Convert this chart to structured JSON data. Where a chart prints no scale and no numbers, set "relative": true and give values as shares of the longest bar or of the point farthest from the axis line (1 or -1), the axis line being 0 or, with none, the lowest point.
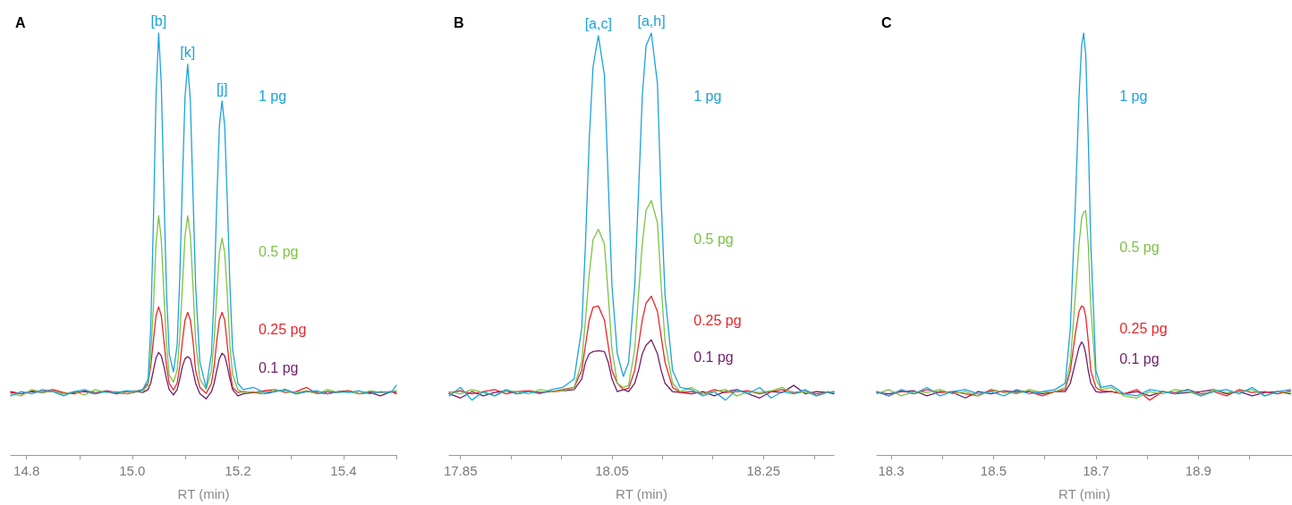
{
  "chart_data": [
    {
      "type": "line",
      "title": "A",
      "xlabel": "RT (min)",
      "relative": true,
      "xlim": [
        14.77,
        15.5
      ],
      "xticks": [
        14.8,
        {
          "value": 14.9,
          "label": null
        },
        {
          "value": 15,
          "label": "15.0"
        },
        {
          "value": 15.1,
          "label": null
        },
        15.2,
        {
          "value": 15.3,
          "label": null
        },
        15.4,
        {
          "value": 15.5,
          "label": null
        }
      ],
      "x": [
        14.77,
        14.79,
        14.81,
        14.83,
        14.85,
        14.87,
        14.89,
        14.91,
        14.93,
        14.95,
        14.97,
        14.99,
        15.01,
        15.02,
        15.03,
        15.035,
        15.04,
        15.045,
        15.05,
        15.055,
        15.06,
        15.065,
        15.07,
        15.078,
        15.085,
        15.09,
        15.095,
        15.1,
        15.105,
        15.11,
        15.115,
        15.12,
        15.128,
        15.14,
        15.15,
        15.155,
        15.16,
        15.165,
        15.17,
        15.175,
        15.18,
        15.185,
        15.19,
        15.2,
        15.21,
        15.23,
        15.25,
        15.27,
        15.29,
        15.31,
        15.33,
        15.35,
        15.37,
        15.39,
        15.41,
        15.43,
        15.45,
        15.47,
        15.49,
        15.5
      ],
      "series": [
        {
          "name": "1 pg",
          "color": "#1ba3dd",
          "values": [
            0.14,
            0.15,
            0.145,
            0.155,
            0.15,
            0.14,
            0.15,
            0.155,
            0.145,
            0.15,
            0.148,
            0.152,
            0.15,
            0.155,
            0.18,
            0.3,
            0.55,
            0.85,
            1.0,
            0.88,
            0.62,
            0.38,
            0.24,
            0.197,
            0.26,
            0.42,
            0.65,
            0.85,
            0.926,
            0.84,
            0.62,
            0.4,
            0.22,
            0.159,
            0.24,
            0.38,
            0.6,
            0.78,
            0.839,
            0.78,
            0.6,
            0.4,
            0.25,
            0.17,
            0.155,
            0.16,
            0.148,
            0.15,
            0.155,
            0.145,
            0.15,
            0.152,
            0.145,
            0.15,
            0.148,
            0.152,
            0.145,
            0.15,
            0.148,
            0.165
          ]
        },
        {
          "name": "0.5 pg",
          "color": "#7dc242",
          "values": [
            0.145,
            0.14,
            0.155,
            0.148,
            0.152,
            0.145,
            0.15,
            0.142,
            0.155,
            0.148,
            0.15,
            0.145,
            0.152,
            0.15,
            0.165,
            0.23,
            0.35,
            0.5,
            0.567,
            0.51,
            0.38,
            0.26,
            0.19,
            0.173,
            0.2,
            0.28,
            0.4,
            0.52,
            0.567,
            0.52,
            0.4,
            0.27,
            0.18,
            0.156,
            0.2,
            0.27,
            0.38,
            0.48,
            0.514,
            0.48,
            0.38,
            0.26,
            0.19,
            0.155,
            0.148,
            0.15,
            0.145,
            0.155,
            0.15,
            0.148,
            0.152,
            0.145,
            0.155,
            0.148,
            0.15,
            0.145,
            0.152,
            0.148,
            0.15,
            0.152
          ]
        },
        {
          "name": "0.25 pg",
          "color": "#e8262b",
          "values": [
            0.148,
            0.145,
            0.152,
            0.15,
            0.155,
            0.148,
            0.145,
            0.152,
            0.148,
            0.15,
            0.145,
            0.15,
            0.152,
            0.155,
            0.17,
            0.21,
            0.27,
            0.33,
            0.351,
            0.33,
            0.27,
            0.21,
            0.17,
            0.154,
            0.17,
            0.21,
            0.27,
            0.32,
            0.338,
            0.32,
            0.27,
            0.2,
            0.16,
            0.146,
            0.17,
            0.21,
            0.27,
            0.32,
            0.338,
            0.32,
            0.26,
            0.2,
            0.16,
            0.148,
            0.15,
            0.148,
            0.152,
            0.155,
            0.148,
            0.15,
            0.16,
            0.145,
            0.15,
            0.148,
            0.152,
            0.145,
            0.15,
            0.148,
            0.15,
            0.145
          ]
        },
        {
          "name": "0.1 pg",
          "color": "#6e1f68",
          "values": [
            0.15,
            0.145,
            0.15,
            0.148,
            0.152,
            0.145,
            0.148,
            0.15,
            0.145,
            0.152,
            0.148,
            0.145,
            0.15,
            0.148,
            0.155,
            0.17,
            0.2,
            0.23,
            0.243,
            0.235,
            0.21,
            0.18,
            0.155,
            0.142,
            0.155,
            0.18,
            0.21,
            0.228,
            0.233,
            0.228,
            0.2,
            0.17,
            0.145,
            0.133,
            0.15,
            0.17,
            0.2,
            0.228,
            0.241,
            0.235,
            0.21,
            0.18,
            0.155,
            0.14,
            0.145,
            0.148,
            0.145,
            0.15,
            0.155,
            0.145,
            0.15,
            0.148,
            0.145,
            0.15,
            0.152,
            0.145,
            0.148,
            0.14,
            0.15,
            0.148
          ]
        }
      ],
      "annotations": [
        {
          "text": "[b]",
          "x": 15.05,
          "y": 1.0
        },
        {
          "text": "[k]",
          "x": 15.105,
          "y": 0.926
        },
        {
          "text": "[j]",
          "x": 15.17,
          "y": 0.839
        }
      ]
    },
    {
      "type": "line",
      "title": "B",
      "xlabel": "RT (min)",
      "relative": true,
      "xlim": [
        17.835,
        18.343
      ],
      "xticks": [
        17.85,
        {
          "value": 17.917,
          "label": null
        },
        {
          "value": 17.983,
          "label": null
        },
        18.05,
        {
          "value": 18.117,
          "label": null
        },
        {
          "value": 18.183,
          "label": null
        },
        18.25,
        {
          "value": 18.317,
          "label": null
        }
      ],
      "x": [
        17.835,
        17.85,
        17.865,
        17.88,
        17.895,
        17.91,
        17.925,
        17.94,
        17.955,
        17.97,
        17.985,
        18.0,
        18.01,
        18.015,
        18.02,
        18.025,
        18.032,
        18.04,
        18.045,
        18.05,
        18.057,
        18.065,
        18.072,
        18.08,
        18.085,
        18.09,
        18.095,
        18.102,
        18.11,
        18.115,
        18.12,
        18.13,
        18.14,
        18.155,
        18.17,
        18.185,
        18.2,
        18.215,
        18.23,
        18.245,
        18.26,
        18.275,
        18.29,
        18.305,
        18.32,
        18.335,
        18.343
      ],
      "series": [
        {
          "name": "1 pg",
          "color": "#1ba3dd",
          "values": [
            0.14,
            0.16,
            0.13,
            0.15,
            0.14,
            0.155,
            0.145,
            0.15,
            0.145,
            0.155,
            0.16,
            0.18,
            0.3,
            0.5,
            0.75,
            0.92,
            0.994,
            0.9,
            0.65,
            0.4,
            0.24,
            0.186,
            0.22,
            0.4,
            0.62,
            0.85,
            0.97,
            1.0,
            0.88,
            0.6,
            0.38,
            0.2,
            0.16,
            0.155,
            0.14,
            0.15,
            0.13,
            0.155,
            0.145,
            0.16,
            0.135,
            0.15,
            0.145,
            0.155,
            0.14,
            0.15,
            0.148
          ]
        },
        {
          "name": "0.5 pg",
          "color": "#7dc242",
          "values": [
            0.15,
            0.145,
            0.155,
            0.148,
            0.14,
            0.152,
            0.15,
            0.145,
            0.155,
            0.15,
            0.152,
            0.16,
            0.22,
            0.32,
            0.43,
            0.51,
            0.535,
            0.5,
            0.38,
            0.25,
            0.17,
            0.16,
            0.165,
            0.25,
            0.38,
            0.5,
            0.58,
            0.603,
            0.55,
            0.4,
            0.27,
            0.17,
            0.15,
            0.16,
            0.145,
            0.15,
            0.155,
            0.14,
            0.15,
            0.148,
            0.152,
            0.16,
            0.145,
            0.15,
            0.14,
            0.148,
            0.15
          ]
        },
        {
          "name": "0.25 pg",
          "color": "#e8262b",
          "values": [
            0.148,
            0.152,
            0.145,
            0.15,
            0.155,
            0.145,
            0.15,
            0.152,
            0.148,
            0.15,
            0.155,
            0.16,
            0.2,
            0.26,
            0.32,
            0.35,
            0.353,
            0.32,
            0.26,
            0.2,
            0.17,
            0.155,
            0.158,
            0.2,
            0.26,
            0.32,
            0.36,
            0.376,
            0.34,
            0.28,
            0.22,
            0.16,
            0.148,
            0.15,
            0.145,
            0.155,
            0.148,
            0.15,
            0.152,
            0.145,
            0.15,
            0.155,
            0.148,
            0.15,
            0.145,
            0.148,
            0.15
          ]
        },
        {
          "name": "0.1 pg",
          "color": "#6e1f68",
          "values": [
            0.145,
            0.135,
            0.15,
            0.14,
            0.148,
            0.152,
            0.145,
            0.15,
            0.148,
            0.15,
            0.152,
            0.155,
            0.18,
            0.22,
            0.24,
            0.245,
            0.247,
            0.245,
            0.22,
            0.18,
            0.15,
            0.155,
            0.15,
            0.17,
            0.2,
            0.24,
            0.26,
            0.273,
            0.24,
            0.2,
            0.17,
            0.15,
            0.148,
            0.145,
            0.15,
            0.14,
            0.15,
            0.155,
            0.145,
            0.135,
            0.15,
            0.148,
            0.165,
            0.145,
            0.15,
            0.148,
            0.145
          ]
        }
      ],
      "annotations": [
        {
          "text": "[a,c]",
          "x": 18.032,
          "y": 0.994
        },
        {
          "text": "[a,h]",
          "x": 18.102,
          "y": 1.0
        }
      ]
    },
    {
      "type": "line",
      "title": "C",
      "xlabel": "RT (min)",
      "relative": true,
      "xlim": [
        18.272,
        19.083
      ],
      "xticks": [
        18.3,
        {
          "value": 18.4,
          "label": null
        },
        18.5,
        {
          "value": 18.6,
          "label": null
        },
        18.7,
        {
          "value": 18.8,
          "label": null
        },
        18.9,
        {
          "value": 19,
          "label": null
        }
      ],
      "x": [
        18.272,
        18.295,
        18.32,
        18.345,
        18.37,
        18.395,
        18.42,
        18.445,
        18.47,
        18.495,
        18.52,
        18.545,
        18.57,
        18.595,
        18.62,
        18.64,
        18.65,
        18.66,
        18.667,
        18.672,
        18.676,
        18.68,
        18.685,
        18.69,
        18.7,
        18.71,
        18.73,
        18.755,
        18.78,
        18.805,
        18.83,
        18.855,
        18.88,
        18.905,
        18.93,
        18.955,
        18.98,
        19.005,
        19.03,
        19.055,
        19.08
      ],
      "series": [
        {
          "name": "1 pg",
          "color": "#1ba3dd",
          "values": [
            0.15,
            0.14,
            0.155,
            0.145,
            0.16,
            0.14,
            0.15,
            0.155,
            0.145,
            0.15,
            0.14,
            0.155,
            0.145,
            0.15,
            0.155,
            0.17,
            0.3,
            0.6,
            0.85,
            0.97,
            1.0,
            0.95,
            0.75,
            0.5,
            0.2,
            0.16,
            0.165,
            0.145,
            0.14,
            0.155,
            0.15,
            0.145,
            0.155,
            0.14,
            0.15,
            0.155,
            0.145,
            0.16,
            0.14,
            0.15,
            0.155
          ]
        },
        {
          "name": "0.5 pg",
          "color": "#7dc242",
          "values": [
            0.145,
            0.155,
            0.14,
            0.15,
            0.148,
            0.155,
            0.145,
            0.15,
            0.14,
            0.152,
            0.15,
            0.145,
            0.155,
            0.148,
            0.15,
            0.16,
            0.22,
            0.38,
            0.5,
            0.56,
            0.575,
            0.579,
            0.5,
            0.35,
            0.18,
            0.155,
            0.16,
            0.14,
            0.135,
            0.15,
            0.145,
            0.155,
            0.15,
            0.14,
            0.155,
            0.148,
            0.15,
            0.155,
            0.14,
            0.15,
            0.148
          ]
        },
        {
          "name": "0.25 pg",
          "color": "#e8262b",
          "values": [
            0.15,
            0.14,
            0.152,
            0.145,
            0.155,
            0.148,
            0.15,
            0.145,
            0.14,
            0.155,
            0.148,
            0.152,
            0.15,
            0.14,
            0.15,
            0.155,
            0.2,
            0.29,
            0.34,
            0.353,
            0.35,
            0.33,
            0.27,
            0.2,
            0.16,
            0.152,
            0.15,
            0.145,
            0.155,
            0.13,
            0.15,
            0.148,
            0.155,
            0.145,
            0.15,
            0.14,
            0.155,
            0.148,
            0.15,
            0.145,
            0.152
          ]
        },
        {
          "name": "0.1 pg",
          "color": "#6e1f68",
          "values": [
            0.148,
            0.145,
            0.15,
            0.152,
            0.14,
            0.15,
            0.148,
            0.135,
            0.15,
            0.145,
            0.152,
            0.148,
            0.15,
            0.145,
            0.15,
            0.15,
            0.17,
            0.22,
            0.255,
            0.268,
            0.26,
            0.24,
            0.2,
            0.17,
            0.15,
            0.148,
            0.15,
            0.145,
            0.15,
            0.14,
            0.15,
            0.145,
            0.148,
            0.15,
            0.155,
            0.145,
            0.15,
            0.14,
            0.148,
            0.15,
            0.145
          ]
        }
      ]
    }
  ]
}
